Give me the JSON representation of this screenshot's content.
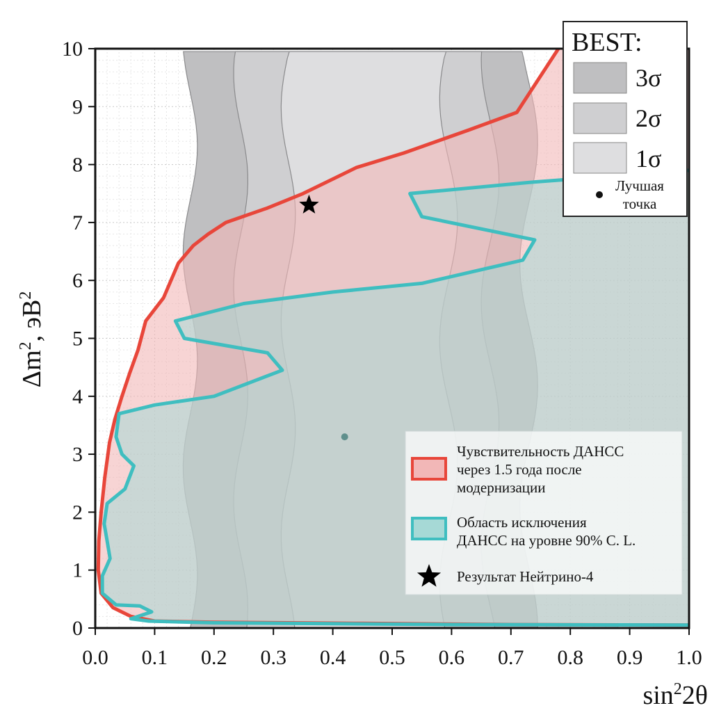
{
  "chart_data": {
    "type": "area",
    "xlabel_parts": [
      "sin",
      "2",
      "2θ"
    ],
    "ylabel_parts": [
      "Δm",
      "2",
      ", эВ",
      "2"
    ],
    "xlim": [
      0.0,
      1.0
    ],
    "ylim": [
      0,
      10
    ],
    "x_ticks": [
      "0.0",
      "0.1",
      "0.2",
      "0.3",
      "0.4",
      "0.5",
      "0.6",
      "0.7",
      "0.8",
      "0.9",
      "1.0"
    ],
    "y_ticks": [
      "0",
      "1",
      "2",
      "3",
      "4",
      "5",
      "6",
      "7",
      "8",
      "9",
      "10"
    ],
    "grid": true,
    "best_legend": {
      "title": "BEST:",
      "levels": [
        {
          "label": "3σ",
          "color": "#bfbfc1"
        },
        {
          "label": "2σ",
          "color": "#cfcfd1"
        },
        {
          "label": "1σ",
          "color": "#dedee0"
        }
      ],
      "best_point_label_line1": "Лучшая",
      "best_point_label_line2": "точка"
    },
    "legend": {
      "sensitivity_line1": "Чувствительность ДАНСС",
      "sensitivity_line2": "через 1.5 года после",
      "sensitivity_line3": "модернизации",
      "exclusion_line1": "Область исключения",
      "exclusion_line2": "ДАНСС на уровне 90% C. L.",
      "neutrino4_label": "Результат Нейтрино-4"
    },
    "series": [
      {
        "name": "Чувствительность ДАНСС через 1.5 года после модернизации",
        "color": "#e8463a",
        "fill": "#f2b7b7",
        "points": [
          [
            0.78,
            10
          ],
          [
            0.71,
            8.9
          ],
          [
            0.63,
            8.6
          ],
          [
            0.52,
            8.2
          ],
          [
            0.44,
            7.95
          ],
          [
            0.35,
            7.5
          ],
          [
            0.29,
            7.25
          ],
          [
            0.22,
            7.0
          ],
          [
            0.19,
            6.8
          ],
          [
            0.165,
            6.6
          ],
          [
            0.14,
            6.3
          ],
          [
            0.115,
            5.7
          ],
          [
            0.085,
            5.3
          ],
          [
            0.072,
            4.8
          ],
          [
            0.058,
            4.4
          ],
          [
            0.045,
            4.0
          ],
          [
            0.033,
            3.6
          ],
          [
            0.024,
            3.2
          ],
          [
            0.016,
            2.6
          ],
          [
            0.01,
            2.0
          ],
          [
            0.006,
            1.5
          ],
          [
            0.005,
            1.0
          ],
          [
            0.01,
            0.6
          ],
          [
            0.03,
            0.35
          ],
          [
            0.06,
            0.2
          ],
          [
            0.1,
            0.12
          ],
          [
            0.2,
            0.1
          ],
          [
            0.45,
            0.08
          ],
          [
            0.7,
            0.06
          ],
          [
            1.0,
            0.05
          ],
          [
            1.0,
            10
          ]
        ]
      },
      {
        "name": "Область исключения ДАНСС на уровне 90% C. L.",
        "color": "#3fbec0",
        "fill": "#a6d9d6",
        "points": [
          [
            1.0,
            7.9
          ],
          [
            0.74,
            7.7
          ],
          [
            0.53,
            7.5
          ],
          [
            0.55,
            7.1
          ],
          [
            0.74,
            6.7
          ],
          [
            0.72,
            6.35
          ],
          [
            0.55,
            5.95
          ],
          [
            0.4,
            5.8
          ],
          [
            0.25,
            5.6
          ],
          [
            0.135,
            5.3
          ],
          [
            0.15,
            5.0
          ],
          [
            0.29,
            4.75
          ],
          [
            0.315,
            4.45
          ],
          [
            0.2,
            4.0
          ],
          [
            0.1,
            3.85
          ],
          [
            0.04,
            3.7
          ],
          [
            0.035,
            3.3
          ],
          [
            0.045,
            3.0
          ],
          [
            0.065,
            2.8
          ],
          [
            0.05,
            2.4
          ],
          [
            0.02,
            2.15
          ],
          [
            0.015,
            1.8
          ],
          [
            0.02,
            1.5
          ],
          [
            0.025,
            1.2
          ],
          [
            0.012,
            0.9
          ],
          [
            0.012,
            0.6
          ],
          [
            0.035,
            0.4
          ],
          [
            0.075,
            0.38
          ],
          [
            0.095,
            0.28
          ],
          [
            0.06,
            0.16
          ],
          [
            0.09,
            0.12
          ],
          [
            0.2,
            0.09
          ],
          [
            0.6,
            0.06
          ],
          [
            1.0,
            0.05
          ]
        ]
      }
    ],
    "best_contours": [
      {
        "level": "3σ",
        "x_left": 0.16,
        "x_right": 0.73
      },
      {
        "level": "2σ",
        "x_left": 0.245,
        "x_right": 0.665
      },
      {
        "level": "1σ",
        "x_left": 0.325,
        "x_right": 0.595
      }
    ],
    "best_point": {
      "x": 0.42,
      "y": 3.3
    },
    "neutrino4_point": {
      "x": 0.36,
      "y": 7.3
    }
  }
}
